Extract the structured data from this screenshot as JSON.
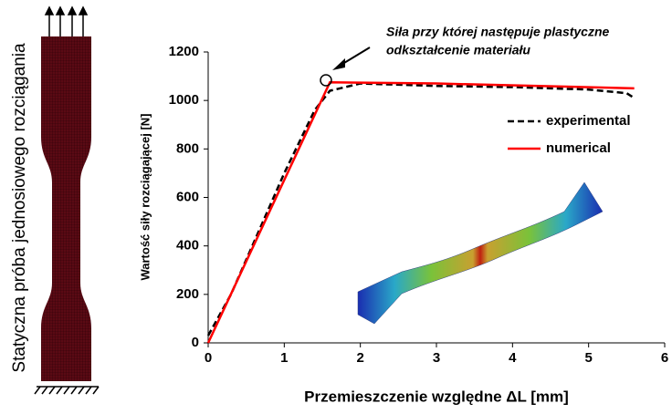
{
  "chart_data": {
    "type": "line",
    "side_label": "Statyczna próba jednosiowego rozciągania",
    "xlabel": "Przemieszczenie względne ΔL [mm]",
    "ylabel": "Wartość siły rozciągającej [N]",
    "annotation": [
      "Siła przy której następuje plastyczne",
      "odkształcenie materiału"
    ],
    "xlim": [
      0,
      6
    ],
    "xticks": [
      0,
      1,
      2,
      3,
      4,
      5,
      6
    ],
    "ylim": [
      0,
      1200
    ],
    "yticks": [
      0,
      200,
      400,
      600,
      800,
      1000,
      1200
    ],
    "grid": false,
    "legend": "right",
    "series": [
      {
        "name": "experimental",
        "color": "#000000",
        "dash": true,
        "x": [
          0,
          0.3,
          1,
          1.4,
          1.6,
          2,
          3,
          4,
          5,
          5.5,
          5.6
        ],
        "values": [
          30,
          200,
          700,
          960,
          1040,
          1070,
          1060,
          1055,
          1045,
          1030,
          1010
        ]
      },
      {
        "name": "numerical",
        "color": "#ff0000",
        "dash": false,
        "x": [
          0,
          1.6,
          3,
          5.6
        ],
        "values": [
          0,
          1075,
          1070,
          1050
        ]
      }
    ]
  }
}
